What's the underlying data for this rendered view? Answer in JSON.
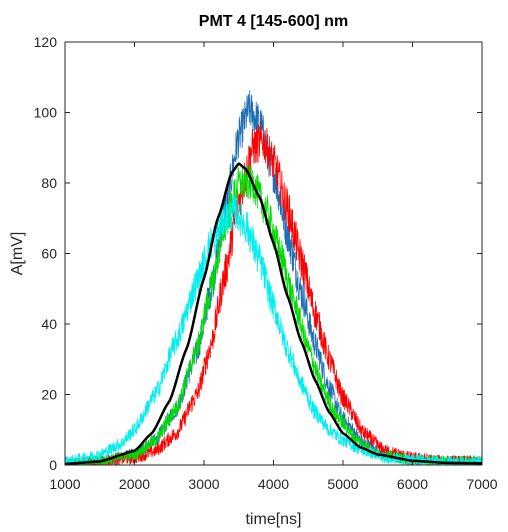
{
  "chart_data": {
    "type": "line",
    "title": "PMT 4 [145-600] nm",
    "xlabel": "time[ns]",
    "ylabel": "A[mV]",
    "xlim": [
      1000,
      7000
    ],
    "ylim": [
      0,
      120
    ],
    "xticks": [
      1000,
      2000,
      3000,
      4000,
      5000,
      6000,
      7000
    ],
    "yticks": [
      0,
      20,
      40,
      60,
      80,
      100,
      120
    ],
    "grid": false,
    "legend": "none",
    "series": [
      {
        "color": "#1f6fb4",
        "noise": 4.5,
        "x": [
          1000,
          1500,
          2000,
          2300,
          2600,
          2900,
          3100,
          3300,
          3500,
          3650,
          3800,
          4000,
          4200,
          4400,
          4600,
          4800,
          5000,
          5300,
          5600,
          6000,
          6500,
          7000
        ],
        "y": [
          0.5,
          1,
          3,
          7,
          16,
          32,
          50,
          72,
          93,
          101,
          97,
          83,
          66,
          49,
          34,
          22,
          13,
          6,
          3,
          1.5,
          1,
          1
        ]
      },
      {
        "color": "#ff0000",
        "noise": 4.5,
        "x": [
          1000,
          1500,
          2000,
          2300,
          2600,
          2900,
          3100,
          3300,
          3500,
          3700,
          3850,
          4000,
          4200,
          4400,
          4600,
          4800,
          5000,
          5300,
          5600,
          6000,
          6500,
          7000
        ],
        "y": [
          0.5,
          1,
          2,
          4,
          9,
          20,
          34,
          54,
          75,
          90,
          92,
          86,
          73,
          58,
          43,
          30,
          19,
          9,
          4,
          2,
          1,
          1
        ]
      },
      {
        "color": "#00dd00",
        "noise": 4,
        "x": [
          1000,
          1500,
          2000,
          2300,
          2600,
          2900,
          3100,
          3300,
          3500,
          3700,
          3900,
          4100,
          4300,
          4500,
          4700,
          4900,
          5200,
          5500,
          6000,
          6500,
          7000
        ],
        "y": [
          0.5,
          1,
          3,
          7,
          16,
          33,
          50,
          68,
          80,
          80,
          72,
          60,
          46,
          33,
          22,
          14,
          7,
          3,
          1.5,
          1,
          1
        ]
      },
      {
        "color": "#00eeee",
        "noise": 4,
        "x": [
          1000,
          1500,
          1800,
          2000,
          2300,
          2600,
          2900,
          3100,
          3300,
          3450,
          3600,
          3800,
          4000,
          4200,
          4400,
          4600,
          4800,
          5000,
          5300,
          5600,
          6000,
          6500,
          7000
        ],
        "y": [
          1,
          3,
          6,
          10,
          20,
          35,
          52,
          63,
          70,
          72,
          68,
          58,
          45,
          33,
          23,
          15,
          10,
          7,
          4,
          2,
          1.5,
          1,
          1
        ]
      },
      {
        "color": "#000000",
        "noise": 0,
        "width": 2.5,
        "x": [
          1000,
          1500,
          2000,
          2250,
          2500,
          2750,
          3000,
          3200,
          3400,
          3500,
          3600,
          3800,
          4000,
          4200,
          4400,
          4600,
          4800,
          5000,
          5250,
          5500,
          6000,
          6500,
          7000
        ],
        "y": [
          0.3,
          1,
          4,
          9,
          18,
          33,
          53,
          70,
          83,
          85.5,
          84,
          76,
          63,
          48,
          35,
          24,
          15,
          9,
          5,
          3,
          1.2,
          0.6,
          0.5
        ]
      }
    ]
  }
}
